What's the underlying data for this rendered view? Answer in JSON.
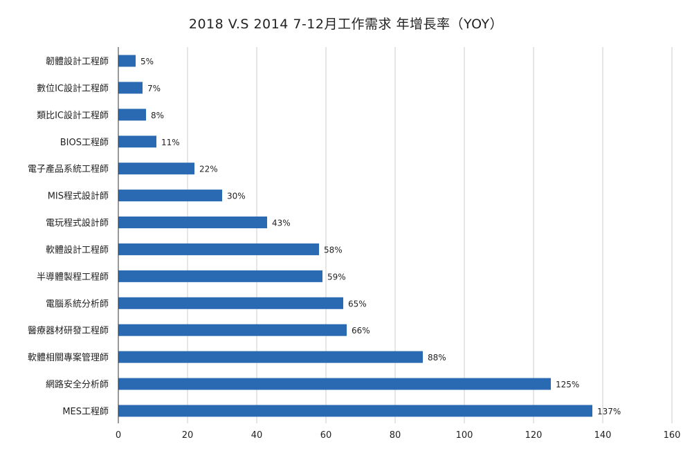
{
  "chart_data": {
    "type": "bar",
    "orientation": "horizontal",
    "title": "2018 V.S 2014 7-12月工作需求 年增長率（YOY）",
    "categories": [
      "韌體設計工程師",
      "數位IC設計工程師",
      "類比IC設計工程師",
      "BIOS工程師",
      "電子產品系統工程師",
      "MIS程式設計師",
      "電玩程式設計師",
      "軟體設計工程師",
      "半導體製程工程師",
      "電腦系統分析師",
      "醫療器材研發工程師",
      "軟體相關專案管理師",
      "網路安全分析師",
      "MES工程師"
    ],
    "values": [
      5,
      7,
      8,
      11,
      22,
      30,
      43,
      58,
      59,
      65,
      66,
      88,
      125,
      137
    ],
    "data_labels": [
      "5%",
      "7%",
      "8%",
      "11%",
      "22%",
      "30%",
      "43%",
      "58%",
      "59%",
      "65%",
      "66%",
      "88%",
      "125%",
      "137%"
    ],
    "xlim": [
      0,
      160
    ],
    "x_ticks": [
      0,
      20,
      40,
      60,
      80,
      100,
      120,
      140,
      160
    ],
    "x_tick_labels": [
      "0",
      "20",
      "40",
      "60",
      "80",
      "100",
      "120",
      "140",
      "160"
    ],
    "grid": "vertical",
    "legend": "none",
    "bar_color": "#2a6ab3",
    "grid_color": "#cccccc",
    "axis_color": "#333333"
  }
}
